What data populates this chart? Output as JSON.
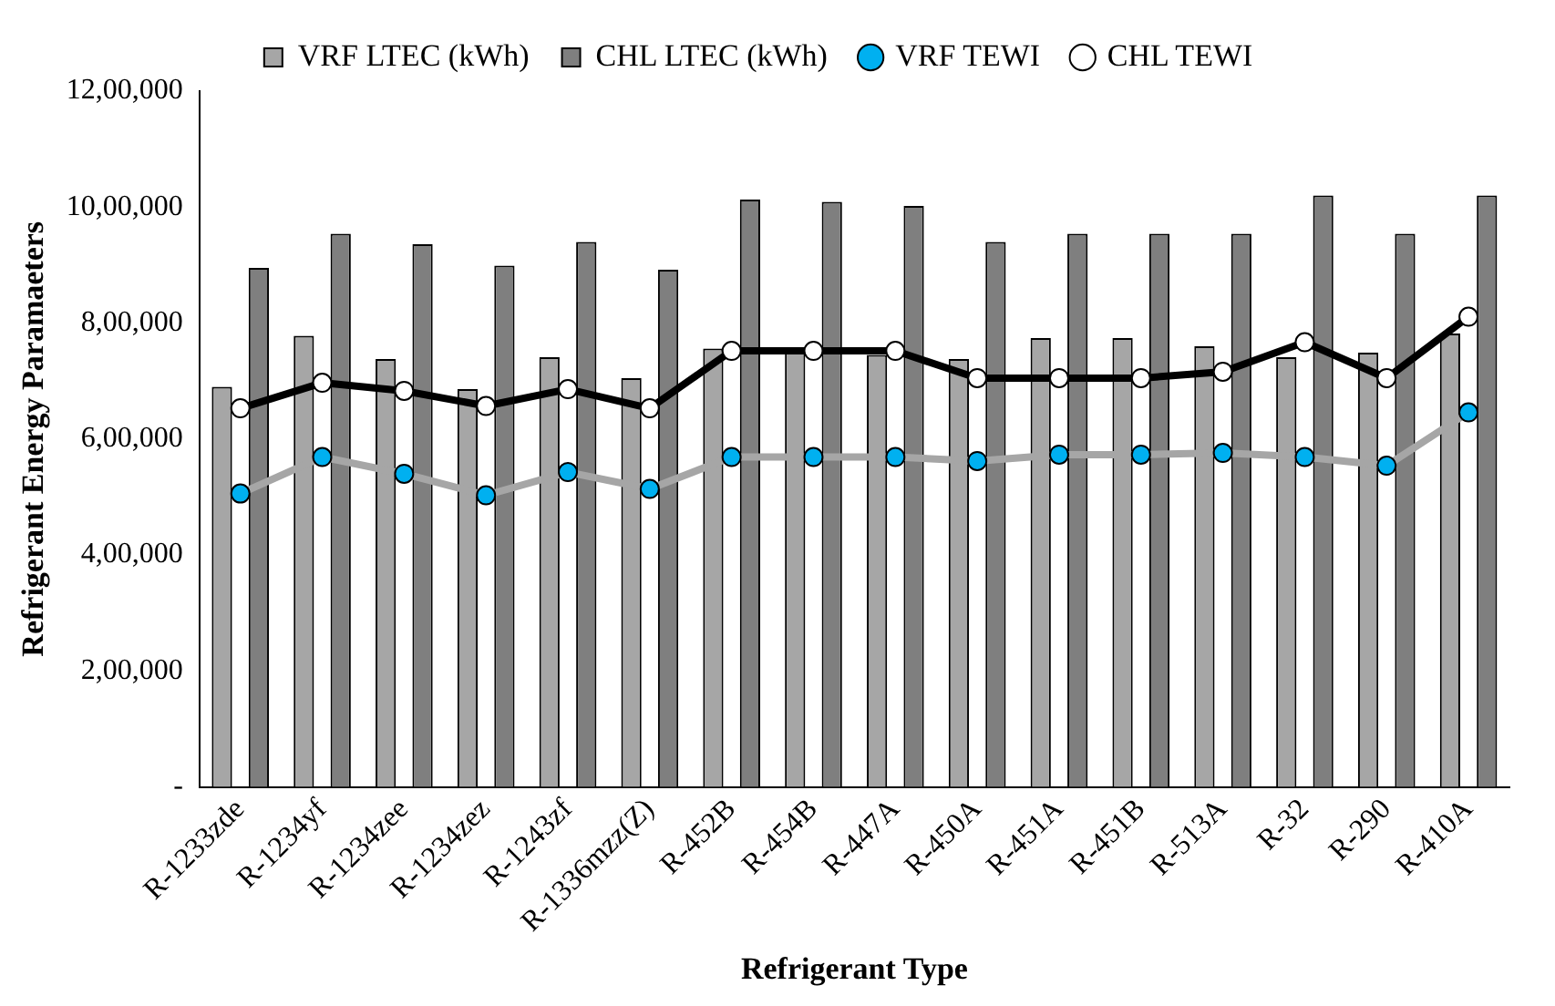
{
  "chart_data": {
    "type": "bar",
    "xlabel": "Refrigerant Type",
    "ylabel": "Refrigerant Energy Paramaeters",
    "categories": [
      "R-1233zde",
      "R-1234yf",
      "R-1234zee",
      "R-1234zez",
      "R-1243zf",
      "R-1336mzz(Z)",
      "R-452B",
      "R-454B",
      "R-447A",
      "R-450A",
      "R-451A",
      "R-451B",
      "R-513A",
      "R-32",
      "R-290",
      "R-410A"
    ],
    "series": [
      {
        "name": "VRF LTEC (kWh)",
        "color": "#a6a6a6",
        "values": [
          690000,
          778000,
          738000,
          686000,
          741000,
          705000,
          756000,
          749000,
          745000,
          738000,
          774000,
          774000,
          760000,
          741000,
          749000,
          782000
        ]
      },
      {
        "name": "CHL LTEC (kWh)",
        "color": "#7f7f7f",
        "values": [
          895000,
          954000,
          936000,
          899000,
          940000,
          892000,
          1013000,
          1009000,
          1002000,
          940000,
          954000,
          954000,
          954000,
          1020000,
          954000,
          1020000
        ]
      },
      {
        "name": "VRF TEWI",
        "type": "line",
        "color": "#a6a6a6",
        "values": [
          506000,
          569000,
          540000,
          503000,
          543000,
          514000,
          569000,
          569000,
          569000,
          562000,
          573000,
          573000,
          576000,
          569000,
          554000,
          646000
        ]
      },
      {
        "name": "CHL TEWI",
        "type": "line",
        "color": "#000000",
        "values": [
          653000,
          697000,
          683000,
          657000,
          686000,
          653000,
          752000,
          752000,
          752000,
          705000,
          705000,
          705000,
          716000,
          767000,
          705000,
          811000
        ]
      }
    ],
    "ylim": [
      0,
      1200000
    ],
    "yticks": [
      {
        "value": 0,
        "label": "-"
      },
      {
        "value": 200000,
        "label": "2,00,000"
      },
      {
        "value": 400000,
        "label": "4,00,000"
      },
      {
        "value": 600000,
        "label": "6,00,000"
      },
      {
        "value": 800000,
        "label": "8,00,000"
      },
      {
        "value": 1000000,
        "label": "10,00,000"
      },
      {
        "value": 1200000,
        "label": "12,00,000"
      }
    ],
    "grid": false,
    "legend": "top",
    "marker": "circle",
    "line_style": "solid"
  }
}
